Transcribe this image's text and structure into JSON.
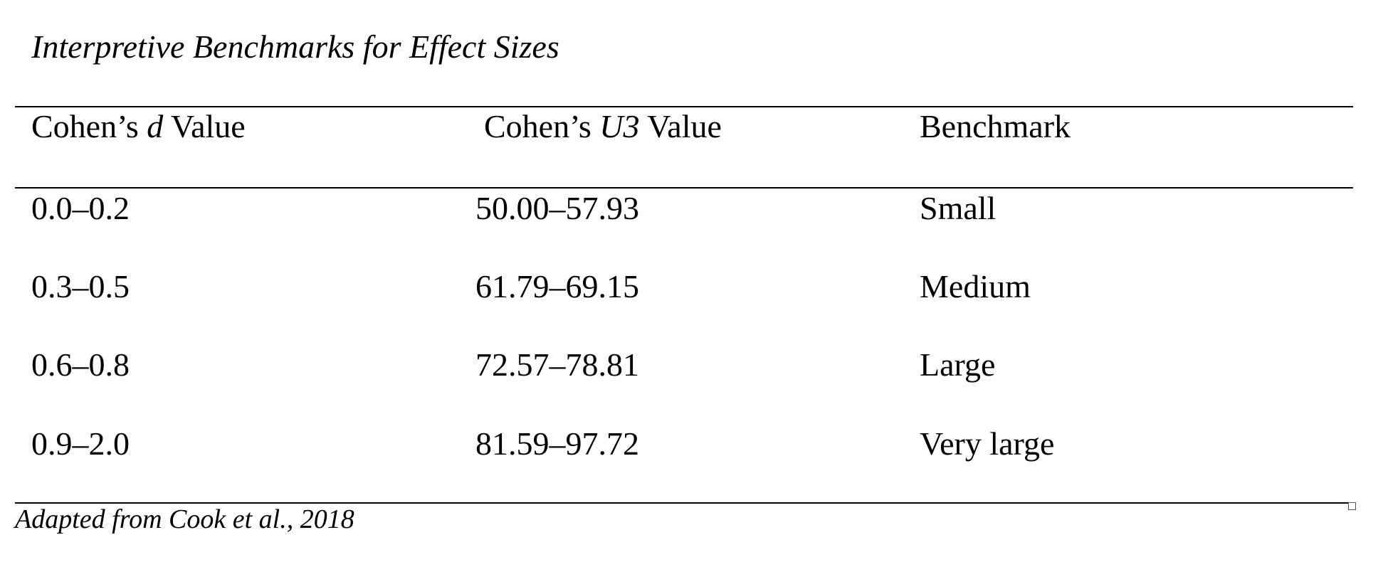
{
  "table": {
    "caption": "Interpretive Benchmarks for Effect Sizes",
    "headers": {
      "col1": {
        "prefix": "Cohen’s ",
        "italic": "d",
        "suffix": " Value"
      },
      "col2": {
        "prefix": "Cohen’s ",
        "italic": "U3",
        "suffix": " Value"
      },
      "col3": "Benchmark"
    },
    "rows": [
      {
        "d": "0.0–0.2",
        "u3": "50.00–57.93",
        "benchmark": "Small"
      },
      {
        "d": "0.3–0.5",
        "u3": "61.79–69.15",
        "benchmark": "Medium"
      },
      {
        "d": "0.6–0.8",
        "u3": "72.57–78.81",
        "benchmark": "Large"
      },
      {
        "d": "0.9–2.0",
        "u3": "81.59–97.72",
        "benchmark": "Very large"
      }
    ],
    "note": "Adapted from Cook et al., 2018"
  }
}
